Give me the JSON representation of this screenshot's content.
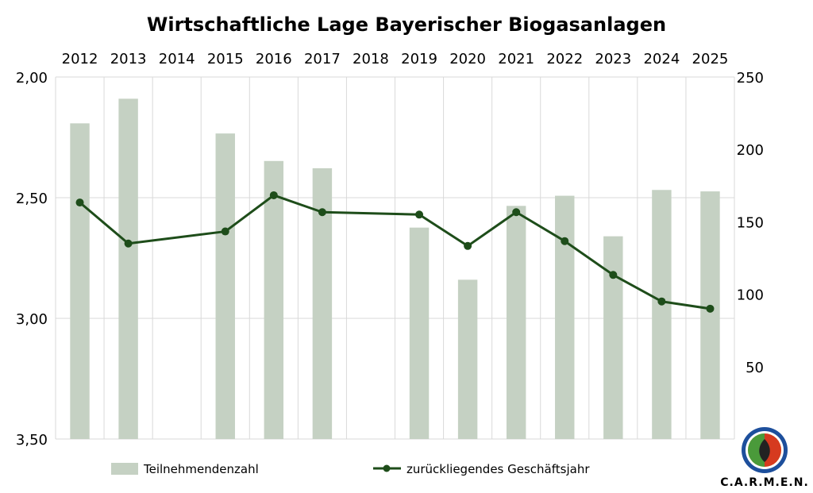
{
  "chart_data": {
    "type": "bar",
    "title": "Wirtschaftliche Lage Bayerischer Biogasanlagen",
    "categories": [
      "2012",
      "2013",
      "2014",
      "2015",
      "2016",
      "2017",
      "2018",
      "2019",
      "2020",
      "2021",
      "2022",
      "2023",
      "2024",
      "2025"
    ],
    "y_left": {
      "ylim": [
        2.0,
        3.5
      ],
      "reversed": true,
      "ticks": [
        "2,00",
        "2,50",
        "3,00",
        "3,50"
      ],
      "tick_values": [
        2.0,
        2.5,
        3.0,
        3.5
      ]
    },
    "y_right": {
      "ylim": [
        0,
        250
      ],
      "ticks": [
        "50",
        "100",
        "150",
        "200",
        "250"
      ],
      "tick_values": [
        50,
        100,
        150,
        200,
        250
      ]
    },
    "series": [
      {
        "name": "Teilnehmendenzahl",
        "type": "bar",
        "axis": "right",
        "color": "#c5d1c3",
        "values": [
          218,
          235,
          null,
          211,
          192,
          187,
          null,
          146,
          110,
          161,
          168,
          140,
          172,
          171
        ]
      },
      {
        "name": "zurückliegendes Geschäftsjahr",
        "type": "line",
        "axis": "left",
        "color": "#1e4d1a",
        "values": [
          2.52,
          2.69,
          null,
          2.64,
          2.49,
          2.56,
          null,
          2.57,
          2.7,
          2.56,
          2.68,
          2.82,
          2.93,
          2.96
        ]
      }
    ],
    "grid": true,
    "legend": "bottom"
  },
  "logo": {
    "text": "C.A.R.M.E.N."
  }
}
